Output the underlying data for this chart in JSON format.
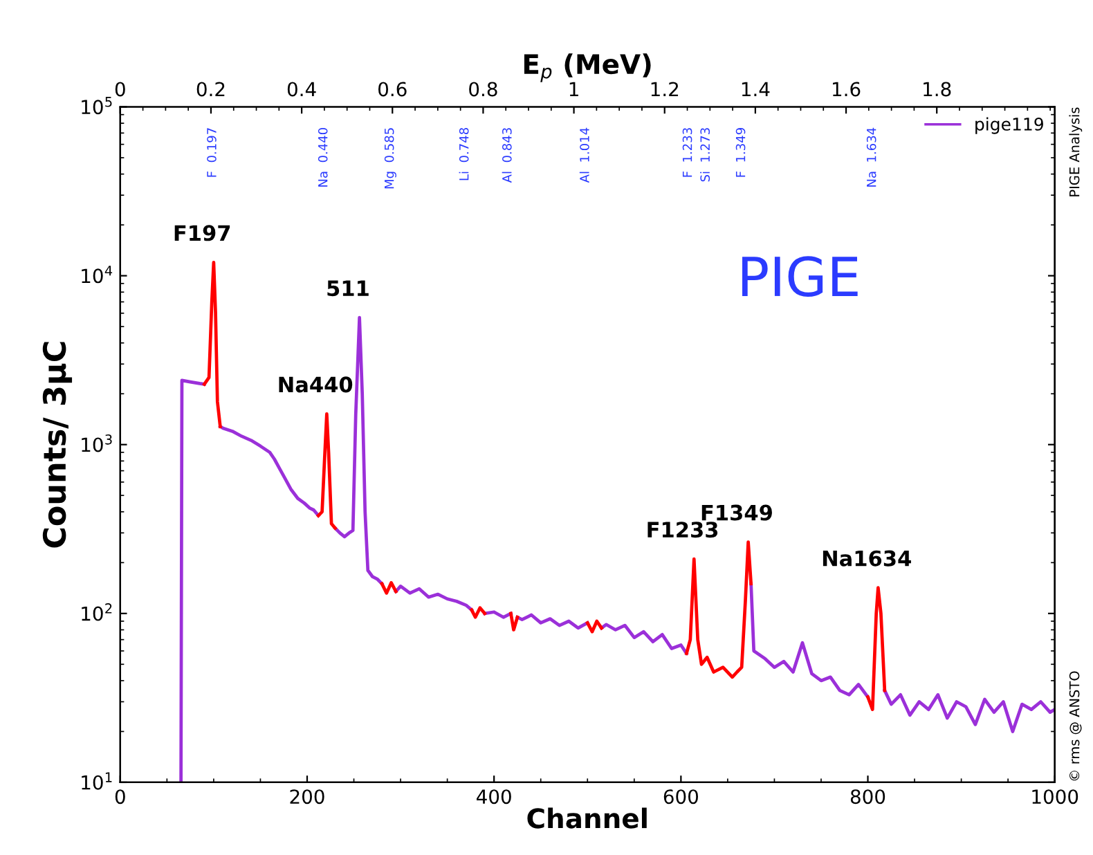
{
  "chart_data": {
    "type": "line",
    "xlabel": "Channel",
    "ylabel": "Counts/ 3µC",
    "x2label": "E$_{p}$ (MeV)",
    "xlim": [
      0,
      1000
    ],
    "xticks": [
      0,
      200,
      400,
      600,
      800,
      1000
    ],
    "x2lim": [
      0,
      2.06
    ],
    "x2ticks": [
      0,
      0.2,
      0.4,
      0.6,
      0.8,
      1,
      1.2,
      1.4,
      1.6,
      1.8
    ],
    "log": "y",
    "ylim": [
      10,
      100000
    ],
    "yticks": [
      {
        "value": 10,
        "label": "10$^{1}$"
      },
      {
        "value": 100,
        "label": "10$^{2}$"
      },
      {
        "value": 1000,
        "label": "10$^{3}$"
      },
      {
        "value": 10000,
        "label": "10$^{4}$"
      },
      {
        "value": 100000,
        "label": "10$^{5}$"
      }
    ],
    "grid": false,
    "legend": "top right",
    "marker": "none",
    "line_style": "solid",
    "x": [
      65,
      66,
      75,
      85,
      90,
      95,
      98,
      100,
      102,
      104,
      107,
      110,
      120,
      130,
      140,
      150,
      160,
      165,
      170,
      175,
      183,
      190,
      197,
      203,
      207,
      212,
      216,
      219,
      221,
      223,
      226,
      230,
      235,
      240,
      245,
      249,
      252,
      256,
      259,
      262,
      265,
      270,
      275,
      280,
      285,
      290,
      295,
      300,
      310,
      320,
      330,
      340,
      350,
      360,
      370,
      376,
      380,
      385,
      390,
      400,
      410,
      418,
      421,
      425,
      430,
      440,
      450,
      460,
      470,
      480,
      490,
      500,
      505,
      510,
      515,
      520,
      530,
      540,
      550,
      560,
      570,
      580,
      590,
      600,
      606,
      610,
      614,
      618,
      622,
      628,
      635,
      645,
      655,
      660,
      665,
      669,
      672,
      675,
      678,
      690,
      700,
      710,
      720,
      730,
      740,
      750,
      760,
      770,
      780,
      790,
      800,
      805,
      809,
      811,
      814,
      818,
      825,
      835,
      845,
      855,
      865,
      875,
      885,
      895,
      905,
      915,
      925,
      935,
      945,
      955,
      965,
      975,
      985,
      995,
      1000
    ],
    "series": [
      {
        "name": "pige119",
        "color": "#9b30d9",
        "values": [
          10,
          2400,
          2350,
          2300,
          2280,
          null,
          null,
          null,
          null,
          null,
          1280,
          1250,
          1200,
          1120,
          1060,
          980,
          900,
          820,
          730,
          650,
          540,
          480,
          450,
          420,
          410,
          380,
          null,
          null,
          null,
          null,
          null,
          320,
          300,
          285,
          300,
          310,
          1500,
          5650,
          2000,
          400,
          180,
          165,
          160,
          150,
          null,
          null,
          135,
          145,
          132,
          140,
          125,
          130,
          122,
          118,
          112,
          105,
          null,
          null,
          100,
          102,
          95,
          100,
          null,
          95,
          92,
          98,
          88,
          93,
          85,
          90,
          82,
          88,
          null,
          null,
          82,
          86,
          80,
          85,
          72,
          78,
          68,
          75,
          62,
          65,
          58,
          null,
          null,
          null,
          null,
          null,
          null,
          null,
          null,
          null,
          null,
          null,
          null,
          150,
          60,
          54,
          48,
          52,
          45,
          67,
          44,
          40,
          42,
          35,
          33,
          38,
          32,
          null,
          null,
          null,
          null,
          35,
          29,
          33,
          25,
          30,
          27,
          33,
          24,
          30,
          28,
          22,
          31,
          26,
          30,
          20,
          29,
          27,
          30,
          26,
          27
        ]
      },
      {
        "color": "#ff0000",
        "values": [
          null,
          null,
          null,
          null,
          2280,
          2500,
          7000,
          12000,
          6000,
          1800,
          1280,
          null,
          null,
          null,
          null,
          null,
          null,
          null,
          null,
          null,
          null,
          null,
          null,
          null,
          null,
          380,
          400,
          900,
          1520,
          900,
          340,
          320,
          null,
          null,
          null,
          null,
          null,
          null,
          null,
          null,
          null,
          null,
          null,
          150,
          132,
          152,
          135,
          null,
          null,
          null,
          null,
          null,
          null,
          null,
          null,
          105,
          95,
          108,
          100,
          null,
          null,
          100,
          80,
          95,
          null,
          null,
          null,
          null,
          null,
          null,
          null,
          88,
          78,
          90,
          82,
          null,
          null,
          null,
          null,
          null,
          null,
          null,
          null,
          null,
          58,
          70,
          210,
          70,
          50,
          55,
          45,
          48,
          42,
          45,
          48,
          120,
          265,
          150,
          null,
          null,
          null,
          null,
          null,
          null,
          null,
          null,
          null,
          null,
          null,
          null,
          32,
          27,
          100,
          142,
          100,
          35,
          null,
          null,
          null,
          null,
          null,
          null,
          null,
          null,
          null,
          null,
          null,
          null,
          null,
          null,
          null,
          null,
          null,
          null,
          null
        ]
      }
    ],
    "annotations": [
      "PIGE",
      "PIGE Analysis",
      "© rms @ ANSTO",
      {
        "text": "F197",
        "x": 100,
        "y": 12000
      },
      {
        "text": "Na440",
        "x": 221,
        "y": 1520
      },
      {
        "text": "511",
        "x": 256,
        "y": 5650
      },
      {
        "text": "F1233",
        "x": 614,
        "y": 210
      },
      {
        "text": "F1349",
        "x": 672,
        "y": 265
      },
      {
        "text": "Na1634",
        "x": 811,
        "y": 142
      },
      "F  0.197",
      "Na  0.440",
      "Mg  0.585",
      "Li  0.748",
      "Al  0.843",
      "Al  1.014",
      "F  1.233",
      "Si  1.273",
      "F  1.349",
      "Na  1.634"
    ]
  }
}
